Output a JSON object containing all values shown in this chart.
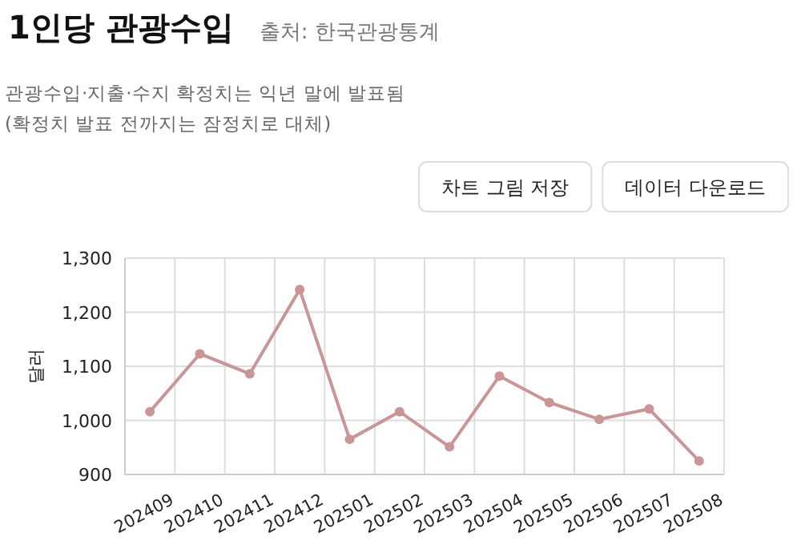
{
  "chart_data": {
    "type": "line",
    "title": "1인당 관광수입",
    "ylabel": "달러",
    "annotations": [
      "출처: 한국관광통계",
      "관광수입·지출·수지 확정치는 익년 말에 발표됨",
      "(확정치 발표 전까지는 잠정치로 대체)",
      "차트 그림 저장",
      "데이터 다운로드"
    ],
    "categories": [
      "202409",
      "202410",
      "202411",
      "202412",
      "202501",
      "202502",
      "202503",
      "202504",
      "202505",
      "202506",
      "202507",
      "202508"
    ],
    "series": [
      {
        "color": "#c99597",
        "values": [
          1016,
          1123,
          1086,
          1242,
          965,
          1016,
          951,
          1082,
          1033,
          1002,
          1021,
          925
        ]
      }
    ],
    "ylim": [
      900,
      1300
    ],
    "yticks": [
      {
        "value": 900,
        "label": "900"
      },
      {
        "value": 1000,
        "label": "1,000"
      },
      {
        "value": 1100,
        "label": "1,100"
      },
      {
        "value": 1200,
        "label": "1,200"
      },
      {
        "value": 1300,
        "label": "1,300"
      }
    ],
    "grid": true,
    "marker": "circle",
    "line_style": "solid"
  }
}
